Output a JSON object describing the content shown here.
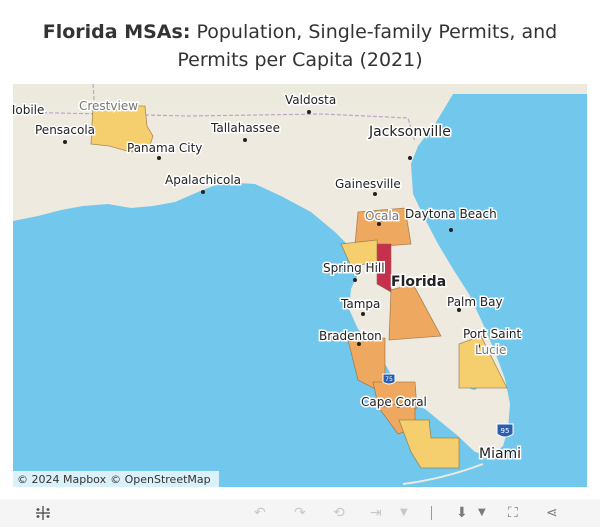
{
  "title": {
    "bold": "Florida MSAs:",
    "rest": " Population, Single-family Permits, and",
    "line2": "Permits per Capita (2021)"
  },
  "map": {
    "state_label": "Florida",
    "cities": [
      "Mobile",
      "Crestview",
      "Pensacola",
      "Panama City",
      "Apalachicola",
      "Valdosta",
      "Tallahassee",
      "Jacksonville",
      "Gainesville",
      "Ocala",
      "Daytona Beach",
      "Spring Hill",
      "Tampa",
      "Palm Bay",
      "Bradenton",
      "Port Saint",
      "Lucie",
      "Cape Coral",
      "Miami"
    ],
    "highway_shields": [
      "95",
      "75"
    ],
    "colors": {
      "water": "#72c8ec",
      "land": "#eeeae0",
      "low": "#f5cf6e",
      "mid": "#efa85f",
      "high": "#c6304f"
    }
  },
  "attribution": {
    "mapbox": "© 2024 Mapbox",
    "osm": "© OpenStreetMap"
  },
  "toolbar": {
    "icons": [
      "tableau-logo-icon",
      "undo-icon",
      "redo-icon",
      "revert-icon",
      "pause-icon",
      "share-view-icon",
      "download-icon",
      "fullscreen-icon",
      "share-icon"
    ]
  }
}
